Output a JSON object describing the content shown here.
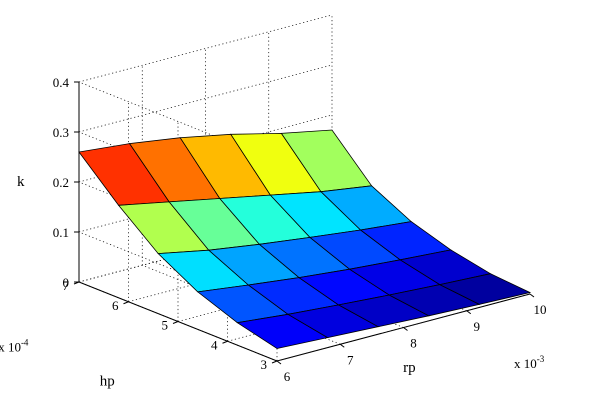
{
  "chart_data": {
    "type": "surface",
    "title": "",
    "xlabel": "rp",
    "ylabel": "hp",
    "zlabel": "k",
    "x_multiplier": "x 10",
    "x_multiplier_exp": "-3",
    "y_multiplier": "x 10",
    "y_multiplier_exp": "-4",
    "x_ticks": [
      "6",
      "7",
      "8",
      "9",
      "10"
    ],
    "y_ticks": [
      "3",
      "4",
      "5",
      "6",
      "7"
    ],
    "z_ticks": [
      "0",
      "0.1",
      "0.2",
      "0.3",
      "0.4"
    ],
    "xlim": [
      6,
      10
    ],
    "ylim": [
      3,
      7
    ],
    "zlim": [
      0,
      0.4
    ],
    "grid": true,
    "colormap": "jet",
    "x": [
      6,
      6.8,
      7.6,
      8.4,
      9.2,
      10
    ],
    "y": [
      3,
      3.8,
      4.6,
      5.4,
      6.2,
      7
    ],
    "z": [
      [
        0.025,
        0.02,
        0.015,
        0.01,
        0.006,
        0.003
      ],
      [
        0.045,
        0.035,
        0.027,
        0.02,
        0.014,
        0.009
      ],
      [
        0.075,
        0.062,
        0.05,
        0.04,
        0.032,
        0.025
      ],
      [
        0.12,
        0.1,
        0.085,
        0.072,
        0.06,
        0.05
      ],
      [
        0.185,
        0.165,
        0.145,
        0.125,
        0.105,
        0.09
      ],
      [
        0.26,
        0.25,
        0.235,
        0.215,
        0.19,
        0.17
      ]
    ]
  }
}
